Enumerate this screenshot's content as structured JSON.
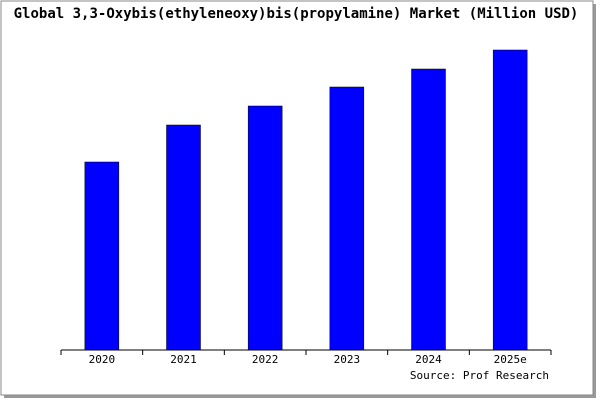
{
  "chart_data": {
    "type": "bar",
    "title": "Global 3,3-Oxybis(ethyleneoxy)bis(propylamine) Market (Million USD)",
    "source": "Source: Prof Research",
    "categories": [
      "2020",
      "2021",
      "2022",
      "2023",
      "2024",
      "2025e"
    ],
    "values": [
      188,
      225,
      244,
      263,
      281,
      300
    ],
    "color": "#0000ff",
    "ylim": [
      0,
      310
    ]
  }
}
